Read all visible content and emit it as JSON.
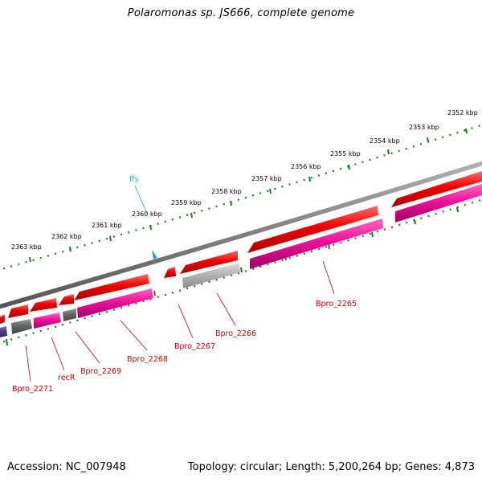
{
  "title": "Polaromonas sp. JS666, complete genome",
  "footer": {
    "accession": "Accession: NC_007948",
    "summary": "Topology: circular; Length: 5,200,264 bp; Genes: 4,873"
  },
  "colors": {
    "backbone": "#808080",
    "forward_gene": "#ee0000",
    "reverse_gene": "#ee1199",
    "pseudo_gene": "#b4b4b4",
    "dark_gene": "#666666",
    "purple_gene": "#4a3f8a",
    "tick": "#1e7a1e",
    "gene_label": "#cc0000",
    "rna_label": "#22aadd"
  },
  "scale": {
    "unit": "kbp",
    "ticks": [
      {
        "kbp": 2352,
        "label": "2352 kbp"
      },
      {
        "kbp": 2353,
        "label": "2353 kbp"
      },
      {
        "kbp": 2354,
        "label": "2354 kbp"
      },
      {
        "kbp": 2355,
        "label": "2355 kbp"
      },
      {
        "kbp": 2356,
        "label": "2356 kbp"
      },
      {
        "kbp": 2357,
        "label": "2357 kbp"
      },
      {
        "kbp": 2358,
        "label": "2358 kbp"
      },
      {
        "kbp": 2359,
        "label": "2359 kbp"
      },
      {
        "kbp": 2360,
        "label": "2360 kbp"
      },
      {
        "kbp": 2361,
        "label": "2361 kbp"
      },
      {
        "kbp": 2362,
        "label": "2362 kbp"
      },
      {
        "kbp": 2363,
        "label": "2363 kbp"
      }
    ]
  },
  "features": [
    {
      "label": "Bpro_2265",
      "type": "gene",
      "strand": "reverse"
    },
    {
      "label": "Bpro_2266",
      "type": "gene",
      "strand": "forward"
    },
    {
      "label": "Bpro_2267",
      "type": "gene",
      "strand": "forward"
    },
    {
      "label": "Bpro_2268",
      "type": "gene",
      "strand": "reverse"
    },
    {
      "label": "Bpro_2269",
      "type": "gene",
      "strand": "reverse"
    },
    {
      "label": "recR",
      "type": "gene",
      "strand": "reverse"
    },
    {
      "label": "Bpro_2271",
      "type": "gene",
      "strand": "reverse"
    },
    {
      "label": "ffs",
      "type": "rna",
      "strand": "forward"
    }
  ]
}
